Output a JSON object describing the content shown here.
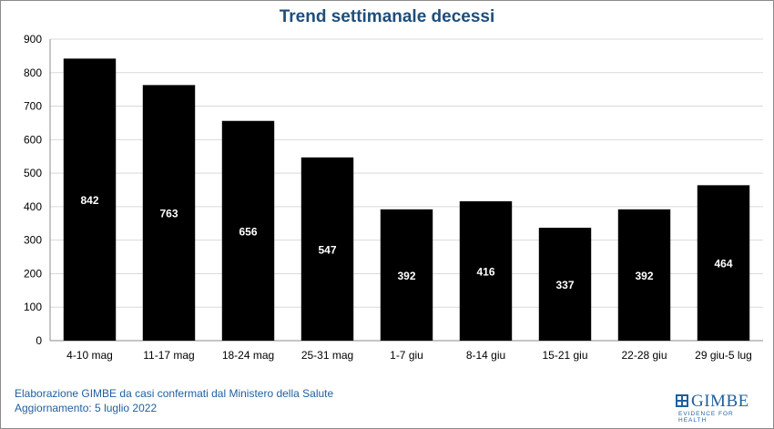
{
  "chart_data": {
    "type": "bar",
    "title": "Trend settimanale decessi",
    "xlabel": "",
    "ylabel": "",
    "categories": [
      "4-10 mag",
      "11-17 mag",
      "18-24 mag",
      "25-31 mag",
      "1-7 giu",
      "8-14 giu",
      "15-21 giu",
      "22-28 giu",
      "29 giu-5 lug"
    ],
    "values": [
      842,
      763,
      656,
      547,
      392,
      416,
      337,
      392,
      464
    ],
    "ylim": [
      0,
      900
    ],
    "yticks": [
      0,
      100,
      200,
      300,
      400,
      500,
      600,
      700,
      800,
      900
    ],
    "grid": true,
    "legend": "none",
    "bar_color": "#000000",
    "label_color": "#ffffff",
    "grid_color": "#d9d9d9"
  },
  "footer": {
    "source_line1": "Elaborazione GIMBE da casi confermati dal Ministero della Salute",
    "source_line2": "Aggiornamento: 5 luglio 2022"
  },
  "logo": {
    "name": "GIMBE",
    "tagline": "EVIDENCE FOR HEALTH",
    "color": "#1f5f9f"
  }
}
